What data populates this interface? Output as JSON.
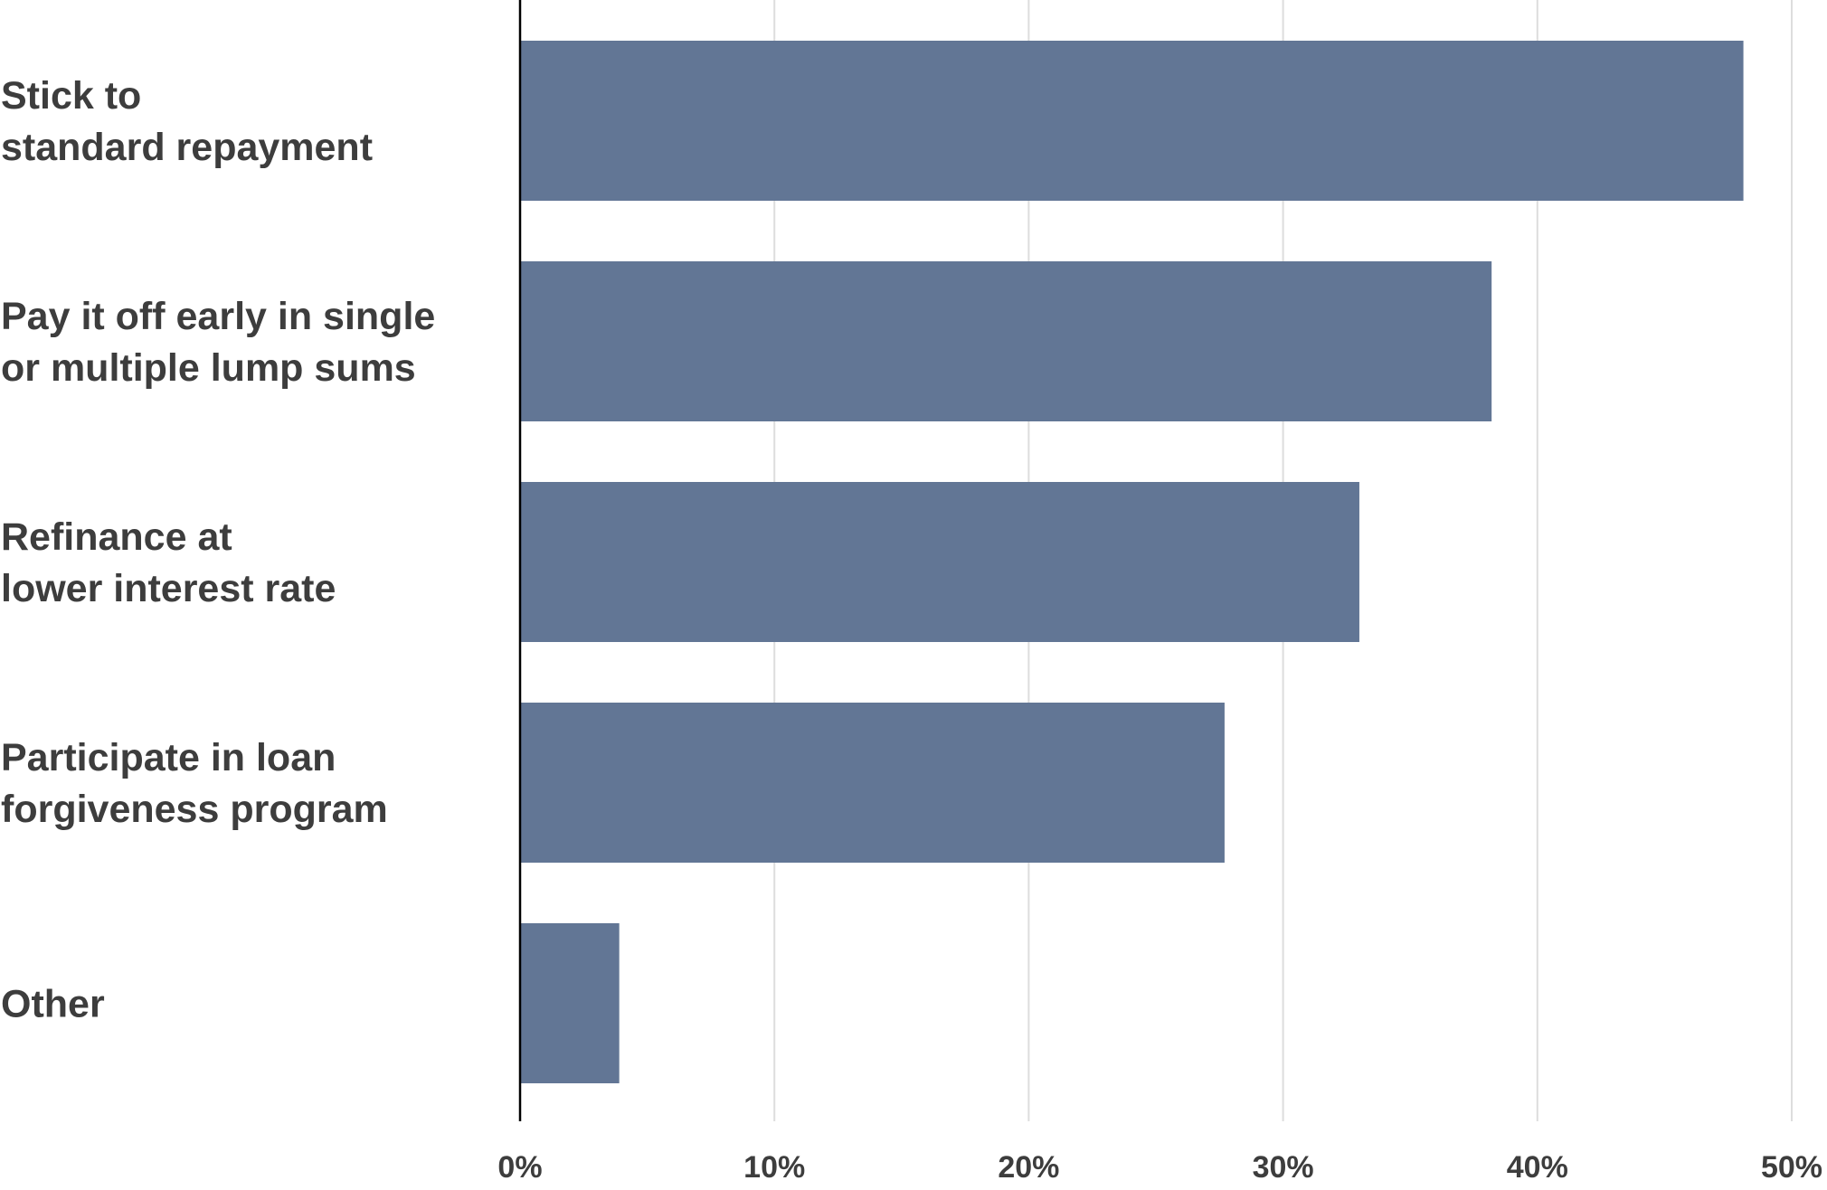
{
  "chart_data": {
    "type": "bar",
    "orientation": "horizontal",
    "categories": [
      "Stick to\nstandard repayment",
      "Pay it off early in single\nor multiple lump sums",
      "Refinance at\nlower interest rate",
      "Participate in loan\nforgiveness program",
      "Other"
    ],
    "values": [
      48.1,
      38.2,
      33.0,
      27.7,
      3.9
    ],
    "xlim": [
      0,
      50
    ],
    "xticks": [
      0,
      10,
      20,
      30,
      40,
      50
    ],
    "xtick_labels": [
      "0%",
      "10%",
      "20%",
      "30%",
      "40%",
      "50%"
    ],
    "title": "",
    "xlabel": "",
    "ylabel": "",
    "grid": "vertical",
    "legend": "none",
    "colors": {
      "bar": "#627695",
      "grid": "#dddddd",
      "axis": "#000000",
      "text": "#3d3d3d"
    }
  }
}
